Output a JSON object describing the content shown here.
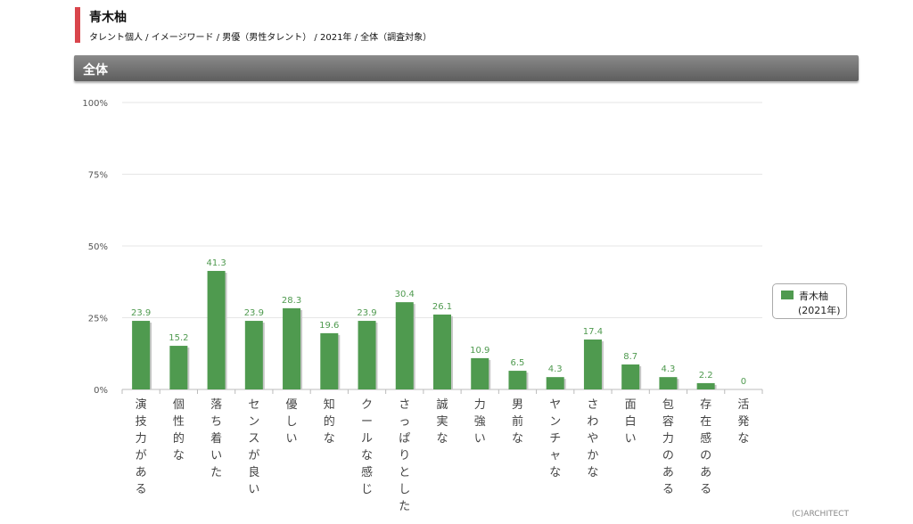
{
  "header": {
    "title": "青木柚",
    "subtitle": "タレント個人 / イメージワード / 男優（男性タレント） / 2021年 / 全体（調査対象）"
  },
  "banner": {
    "label": "全体"
  },
  "colors": {
    "bar": "#4f9a4f",
    "bar_shadow": "#c8c8c8",
    "accent": "#d9454c",
    "label": "#4f9a4f"
  },
  "legend": {
    "name_line1": "青木柚",
    "name_line2": "(2021年)"
  },
  "credit": "(C)ARCHITECT",
  "chart_data": {
    "type": "bar",
    "title": "",
    "xlabel": "",
    "ylabel": "",
    "ylim": [
      0,
      100
    ],
    "yticks": [
      "0%",
      "25%",
      "50%",
      "75%",
      "100%"
    ],
    "grid": true,
    "legend_position": "right",
    "categories": [
      "演技力がある",
      "個性的な",
      "落ち着いた",
      "センスが良い",
      "優しい",
      "知的な",
      "クールな感じ",
      "さっぱりとした",
      "誠実な",
      "力強い",
      "男前な",
      "ヤンチャな",
      "さわやかな",
      "面白い",
      "包容力のある",
      "存在感のある",
      "活発な"
    ],
    "series": [
      {
        "name": "青木柚(2021年)",
        "values": [
          23.9,
          15.2,
          41.3,
          23.9,
          28.3,
          19.6,
          23.9,
          30.4,
          26.1,
          10.9,
          6.5,
          4.3,
          17.4,
          8.7,
          4.3,
          2.2,
          0
        ]
      }
    ]
  }
}
